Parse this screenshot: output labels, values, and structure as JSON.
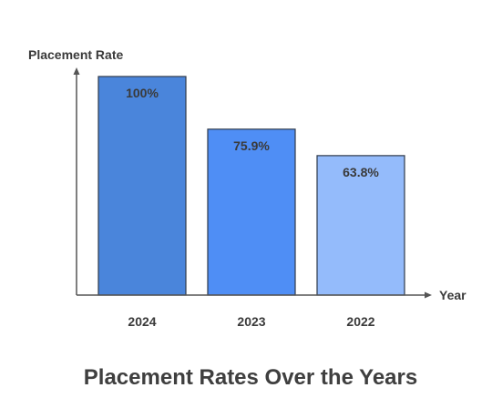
{
  "chart_data": {
    "type": "bar",
    "title": "Placement Rates Over the Years",
    "xlabel": "Year",
    "ylabel": "Placement Rate",
    "categories": [
      "2024",
      "2023",
      "2022"
    ],
    "values": [
      100,
      75.9,
      63.8
    ],
    "data_labels": [
      "100%",
      "75.9%",
      "63.8%"
    ],
    "colors": [
      "#4a85db",
      "#4f8ef5",
      "#94bbfb"
    ],
    "ylim": [
      0,
      100
    ],
    "grid": false,
    "legend": "none"
  }
}
